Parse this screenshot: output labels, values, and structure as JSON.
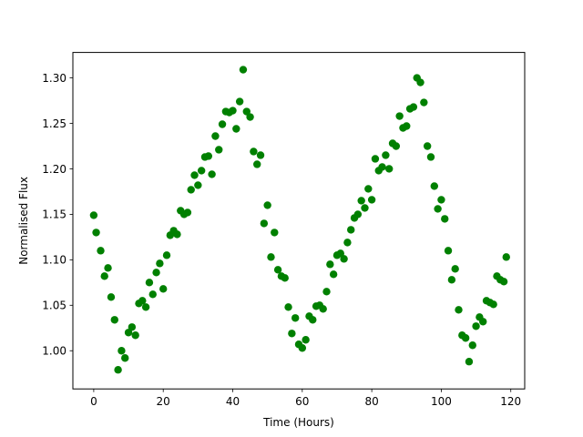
{
  "chart_data": {
    "type": "scatter",
    "title": "",
    "xlabel": "Time (Hours)",
    "ylabel": "Normalised Flux",
    "xlim": [
      -6,
      124
    ],
    "ylim": [
      0.958,
      1.328
    ],
    "xticks": [
      0,
      20,
      40,
      60,
      80,
      100,
      120
    ],
    "xtick_labels": [
      "0",
      "20",
      "40",
      "60",
      "80",
      "100",
      "120"
    ],
    "yticks": [
      1.0,
      1.05,
      1.1,
      1.15,
      1.2,
      1.25,
      1.3
    ],
    "ytick_labels": [
      "1.00",
      "1.05",
      "1.10",
      "1.15",
      "1.20",
      "1.25",
      "1.30"
    ],
    "grid": false,
    "marker_color": "#008000",
    "series": [
      {
        "points": [
          [
            0.0,
            1.149
          ],
          [
            0.7,
            1.13
          ],
          [
            2.0,
            1.11
          ],
          [
            3.1,
            1.082
          ],
          [
            4.1,
            1.091
          ],
          [
            5.0,
            1.059
          ],
          [
            6.0,
            1.034
          ],
          [
            7.0,
            0.979
          ],
          [
            8.0,
            1.0
          ],
          [
            9.0,
            0.992
          ],
          [
            10.0,
            1.02
          ],
          [
            11.0,
            1.026
          ],
          [
            12.0,
            1.017
          ],
          [
            13.0,
            1.052
          ],
          [
            14.0,
            1.055
          ],
          [
            15.0,
            1.048
          ],
          [
            16.0,
            1.075
          ],
          [
            17.0,
            1.062
          ],
          [
            18.0,
            1.086
          ],
          [
            19.0,
            1.096
          ],
          [
            20.0,
            1.068
          ],
          [
            21.0,
            1.105
          ],
          [
            22.0,
            1.127
          ],
          [
            23.0,
            1.132
          ],
          [
            24.0,
            1.128
          ],
          [
            25.0,
            1.154
          ],
          [
            26.0,
            1.15
          ],
          [
            27.0,
            1.152
          ],
          [
            28.0,
            1.177
          ],
          [
            29.0,
            1.193
          ],
          [
            30.0,
            1.182
          ],
          [
            31.0,
            1.198
          ],
          [
            32.0,
            1.213
          ],
          [
            33.0,
            1.214
          ],
          [
            34.0,
            1.194
          ],
          [
            35.0,
            1.236
          ],
          [
            36.0,
            1.221
          ],
          [
            37.0,
            1.249
          ],
          [
            38.0,
            1.263
          ],
          [
            39.0,
            1.262
          ],
          [
            40.0,
            1.264
          ],
          [
            41.0,
            1.244
          ],
          [
            42.0,
            1.274
          ],
          [
            43.0,
            1.309
          ],
          [
            44.0,
            1.263
          ],
          [
            45.0,
            1.257
          ],
          [
            46.0,
            1.219
          ],
          [
            47.0,
            1.205
          ],
          [
            48.0,
            1.215
          ],
          [
            49.0,
            1.14
          ],
          [
            50.0,
            1.16
          ],
          [
            51.0,
            1.103
          ],
          [
            52.0,
            1.13
          ],
          [
            53.0,
            1.089
          ],
          [
            54.0,
            1.082
          ],
          [
            55.0,
            1.08
          ],
          [
            56.0,
            1.048
          ],
          [
            57.0,
            1.019
          ],
          [
            58.0,
            1.036
          ],
          [
            59.0,
            1.007
          ],
          [
            60.0,
            1.003
          ],
          [
            61.0,
            1.012
          ],
          [
            62.0,
            1.038
          ],
          [
            63.0,
            1.034
          ],
          [
            64.0,
            1.049
          ],
          [
            65.0,
            1.05
          ],
          [
            66.0,
            1.046
          ],
          [
            67.0,
            1.065
          ],
          [
            68.0,
            1.095
          ],
          [
            69.0,
            1.084
          ],
          [
            70.0,
            1.105
          ],
          [
            71.0,
            1.107
          ],
          [
            72.0,
            1.101
          ],
          [
            73.0,
            1.119
          ],
          [
            74.0,
            1.133
          ],
          [
            75.0,
            1.146
          ],
          [
            76.0,
            1.15
          ],
          [
            77.0,
            1.165
          ],
          [
            78.0,
            1.157
          ],
          [
            79.0,
            1.178
          ],
          [
            80.0,
            1.166
          ],
          [
            81.0,
            1.211
          ],
          [
            82.0,
            1.198
          ],
          [
            83.0,
            1.202
          ],
          [
            84.0,
            1.215
          ],
          [
            85.0,
            1.2
          ],
          [
            86.0,
            1.228
          ],
          [
            87.0,
            1.225
          ],
          [
            88.0,
            1.258
          ],
          [
            89.0,
            1.245
          ],
          [
            90.0,
            1.247
          ],
          [
            91.0,
            1.266
          ],
          [
            92.0,
            1.268
          ],
          [
            93.0,
            1.3
          ],
          [
            94.0,
            1.295
          ],
          [
            95.0,
            1.273
          ],
          [
            96.0,
            1.225
          ],
          [
            97.0,
            1.213
          ],
          [
            98.0,
            1.181
          ],
          [
            99.0,
            1.156
          ],
          [
            100.0,
            1.166
          ],
          [
            101.0,
            1.145
          ],
          [
            102.0,
            1.11
          ],
          [
            103.0,
            1.078
          ],
          [
            104.0,
            1.09
          ],
          [
            105.0,
            1.045
          ],
          [
            106.0,
            1.017
          ],
          [
            107.0,
            1.014
          ],
          [
            108.0,
            0.988
          ],
          [
            109.0,
            1.006
          ],
          [
            110.0,
            1.027
          ],
          [
            111.0,
            1.037
          ],
          [
            112.0,
            1.032
          ],
          [
            113.0,
            1.055
          ],
          [
            114.0,
            1.053
          ],
          [
            115.0,
            1.051
          ],
          [
            116.0,
            1.082
          ],
          [
            117.0,
            1.078
          ],
          [
            118.0,
            1.076
          ],
          [
            118.7,
            1.103
          ]
        ]
      }
    ]
  }
}
